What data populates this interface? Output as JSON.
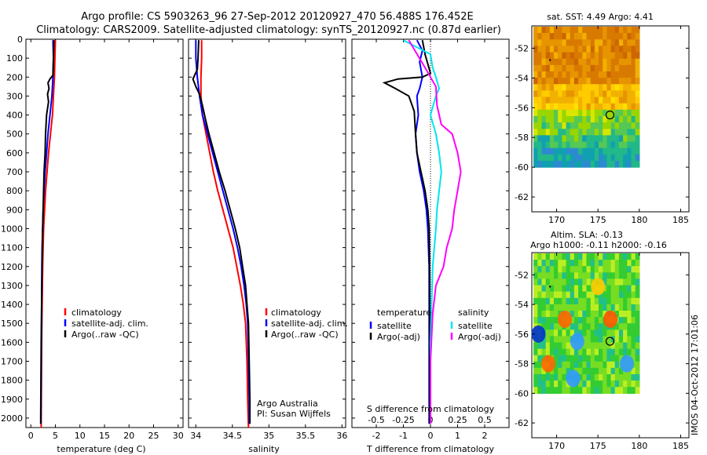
{
  "header": {
    "line1": "Argo profile: CS 5903263_96 27-Sep-2012 20120927_470 56.488S 176.452E",
    "line2": "Climatology: CARS2009. Satellite-adjusted climatology: synTS_20120927.nc (0.87d earlier)"
  },
  "colors": {
    "climatology": "#ff0000",
    "satellite_adj": "#0000ff",
    "argo": "#000000",
    "salinity_satellite": "#00e5ee",
    "salinity_argo": "#ff00ff"
  },
  "chart_data": [
    {
      "type": "line",
      "id": "temperature",
      "xlabel": "temperature (deg C)",
      "ylabel": "",
      "xlim": [
        -1,
        31
      ],
      "ylim": [
        2050,
        0
      ],
      "xticks": [
        "0",
        "5",
        "10",
        "15",
        "20",
        "25",
        "30"
      ],
      "yticks": [
        "0",
        "100",
        "200",
        "300",
        "400",
        "500",
        "600",
        "700",
        "800",
        "900",
        "1000",
        "1100",
        "1200",
        "1300",
        "1400",
        "1500",
        "1600",
        "1700",
        "1800",
        "1900",
        "2000"
      ],
      "legend": [
        "climatology",
        "satellite-adj. clim.",
        "Argo(..raw -QC)"
      ],
      "series": [
        {
          "name": "climatology",
          "color": "#ff0000",
          "points": [
            [
              5.0,
              5
            ],
            [
              4.9,
              100
            ],
            [
              4.8,
              200
            ],
            [
              4.6,
              300
            ],
            [
              4.4,
              400
            ],
            [
              4.0,
              500
            ],
            [
              3.6,
              600
            ],
            [
              3.3,
              700
            ],
            [
              3.0,
              800
            ],
            [
              2.8,
              900
            ],
            [
              2.6,
              1000
            ],
            [
              2.5,
              1100
            ],
            [
              2.4,
              1200
            ],
            [
              2.3,
              1400
            ],
            [
              2.2,
              1600
            ],
            [
              2.15,
              1800
            ],
            [
              2.1,
              2000
            ],
            [
              2.1,
              2050
            ]
          ]
        },
        {
          "name": "satellite-adj. clim.",
          "color": "#0000ff",
          "points": [
            [
              4.5,
              5
            ],
            [
              4.6,
              100
            ],
            [
              4.5,
              200
            ],
            [
              4.3,
              300
            ],
            [
              3.9,
              400
            ],
            [
              3.5,
              500
            ],
            [
              3.2,
              600
            ],
            [
              2.9,
              700
            ],
            [
              2.7,
              800
            ],
            [
              2.5,
              900
            ],
            [
              2.4,
              1000
            ],
            [
              2.3,
              1100
            ],
            [
              2.25,
              1200
            ],
            [
              2.2,
              1400
            ],
            [
              2.1,
              1600
            ],
            [
              2.05,
              1800
            ],
            [
              2.0,
              2000
            ],
            [
              2.0,
              2030
            ]
          ]
        },
        {
          "name": "Argo(..raw -QC)",
          "color": "#000000",
          "points": [
            [
              4.7,
              5
            ],
            [
              4.6,
              100
            ],
            [
              4.5,
              190
            ],
            [
              3.9,
              210
            ],
            [
              3.5,
              230
            ],
            [
              3.7,
              260
            ],
            [
              3.4,
              290
            ],
            [
              3.6,
              330
            ],
            [
              3.2,
              400
            ],
            [
              3.0,
              500
            ],
            [
              2.9,
              600
            ],
            [
              2.7,
              700
            ],
            [
              2.6,
              800
            ],
            [
              2.5,
              900
            ],
            [
              2.4,
              1000
            ],
            [
              2.3,
              1200
            ],
            [
              2.2,
              1400
            ],
            [
              2.15,
              1600
            ],
            [
              2.1,
              1800
            ],
            [
              2.05,
              2000
            ],
            [
              2.05,
              2030
            ]
          ]
        }
      ]
    },
    {
      "type": "line",
      "id": "salinity",
      "xlabel": "salinity",
      "ylabel": "",
      "xlim": [
        33.9,
        36.05
      ],
      "ylim": [
        2050,
        0
      ],
      "xticks": [
        "34",
        "34.5",
        "35",
        "35.5",
        "36"
      ],
      "legend": [
        "climatology",
        "satellite-adj. clim.",
        "Argo(..raw -QC)"
      ],
      "annotation": [
        "Argo Australia",
        "PI: Susan Wijffels"
      ],
      "series": [
        {
          "name": "climatology",
          "color": "#ff0000",
          "points": [
            [
              34.08,
              5
            ],
            [
              34.08,
              100
            ],
            [
              34.07,
              200
            ],
            [
              34.07,
              300
            ],
            [
              34.09,
              400
            ],
            [
              34.14,
              500
            ],
            [
              34.19,
              600
            ],
            [
              34.24,
              700
            ],
            [
              34.3,
              800
            ],
            [
              34.37,
              900
            ],
            [
              34.44,
              1000
            ],
            [
              34.51,
              1100
            ],
            [
              34.56,
              1200
            ],
            [
              34.61,
              1300
            ],
            [
              34.65,
              1400
            ],
            [
              34.68,
              1500
            ],
            [
              34.7,
              1700
            ],
            [
              34.71,
              1900
            ],
            [
              34.72,
              2050
            ]
          ]
        },
        {
          "name": "satellite-adj. clim.",
          "color": "#0000ff",
          "points": [
            [
              34.0,
              5
            ],
            [
              34.0,
              100
            ],
            [
              34.02,
              200
            ],
            [
              34.05,
              300
            ],
            [
              34.09,
              400
            ],
            [
              34.16,
              500
            ],
            [
              34.23,
              600
            ],
            [
              34.3,
              700
            ],
            [
              34.37,
              800
            ],
            [
              34.44,
              900
            ],
            [
              34.51,
              1000
            ],
            [
              34.57,
              1100
            ],
            [
              34.62,
              1200
            ],
            [
              34.66,
              1300
            ],
            [
              34.69,
              1400
            ],
            [
              34.71,
              1500
            ],
            [
              34.72,
              1700
            ],
            [
              34.73,
              1900
            ],
            [
              34.73,
              2030
            ]
          ]
        },
        {
          "name": "Argo(..raw -QC)",
          "color": "#000000",
          "points": [
            [
              34.04,
              5
            ],
            [
              34.03,
              100
            ],
            [
              34.02,
              160
            ],
            [
              33.96,
              210
            ],
            [
              34.0,
              250
            ],
            [
              34.05,
              290
            ],
            [
              34.09,
              350
            ],
            [
              34.13,
              420
            ],
            [
              34.18,
              500
            ],
            [
              34.25,
              600
            ],
            [
              34.32,
              700
            ],
            [
              34.4,
              800
            ],
            [
              34.47,
              900
            ],
            [
              34.54,
              1000
            ],
            [
              34.6,
              1100
            ],
            [
              34.64,
              1200
            ],
            [
              34.68,
              1300
            ],
            [
              34.7,
              1400
            ],
            [
              34.72,
              1500
            ],
            [
              34.73,
              1700
            ],
            [
              34.74,
              1900
            ],
            [
              34.74,
              2030
            ]
          ]
        }
      ]
    },
    {
      "type": "line",
      "id": "difference",
      "xlabel": "T difference from climatology",
      "xlabel_top": "S difference from climatology",
      "xlim": [
        -2.9,
        2.9
      ],
      "ylim": [
        2050,
        0
      ],
      "xticks": [
        "-2",
        "-1",
        "0",
        "1",
        "2"
      ],
      "xticks_s": [
        "-0.5",
        "-0.25",
        "0",
        "0.25",
        "0.5"
      ],
      "legend_t_title": "temperature",
      "legend_s_title": "salinity",
      "legend_t": [
        "satellite",
        "Argo(-adj)"
      ],
      "legend_s": [
        "satellite",
        "Argo(-adj)"
      ],
      "series": [
        {
          "name": "satellite",
          "color": "#0000ff",
          "points": [
            [
              -0.5,
              5
            ],
            [
              -0.3,
              60
            ],
            [
              -0.4,
              120
            ],
            [
              -0.3,
              200
            ],
            [
              -0.4,
              260
            ],
            [
              -0.5,
              300
            ],
            [
              -0.45,
              400
            ],
            [
              -0.55,
              500
            ],
            [
              -0.5,
              600
            ],
            [
              -0.4,
              700
            ],
            [
              -0.25,
              800
            ],
            [
              -0.15,
              900
            ],
            [
              -0.1,
              1000
            ],
            [
              -0.05,
              1200
            ],
            [
              -0.05,
              1600
            ],
            [
              -0.05,
              2030
            ]
          ]
        },
        {
          "name": "Argo(-adj)",
          "color": "#000000",
          "points": [
            [
              -0.3,
              5
            ],
            [
              -0.2,
              80
            ],
            [
              0.0,
              180
            ],
            [
              -0.3,
              200
            ],
            [
              -1.2,
              210
            ],
            [
              -1.7,
              230
            ],
            [
              -1.3,
              260
            ],
            [
              -0.8,
              300
            ],
            [
              -0.6,
              380
            ],
            [
              -0.55,
              500
            ],
            [
              -0.5,
              600
            ],
            [
              -0.35,
              700
            ],
            [
              -0.2,
              800
            ],
            [
              -0.1,
              900
            ],
            [
              -0.05,
              1000
            ],
            [
              -0.03,
              1300
            ],
            [
              -0.03,
              1700
            ],
            [
              -0.03,
              2030
            ]
          ]
        },
        {
          "name": "satellite",
          "color": "#00e5ee",
          "points": [
            [
              -0.25,
              5
            ],
            [
              0.0,
              80
            ],
            [
              0.02,
              150
            ],
            [
              0.05,
              200
            ],
            [
              0.08,
              260
            ],
            [
              0.05,
              300
            ],
            [
              0.0,
              400
            ],
            [
              0.05,
              500
            ],
            [
              0.08,
              600
            ],
            [
              0.1,
              700
            ],
            [
              0.08,
              800
            ],
            [
              0.06,
              900
            ],
            [
              0.05,
              1000
            ],
            [
              0.02,
              1200
            ],
            [
              0.01,
              1400
            ],
            [
              0.0,
              1600
            ],
            [
              0.0,
              2030
            ]
          ]
        },
        {
          "name": "Argo(-adj)",
          "color": "#ff00ff",
          "points": [
            [
              -0.2,
              5
            ],
            [
              -0.05,
              150
            ],
            [
              0.05,
              250
            ],
            [
              0.06,
              350
            ],
            [
              0.1,
              450
            ],
            [
              0.2,
              500
            ],
            [
              0.25,
              600
            ],
            [
              0.28,
              700
            ],
            [
              0.25,
              800
            ],
            [
              0.22,
              900
            ],
            [
              0.2,
              1000
            ],
            [
              0.15,
              1100
            ],
            [
              0.12,
              1200
            ],
            [
              0.05,
              1300
            ],
            [
              0.02,
              1450
            ],
            [
              0.0,
              1700
            ],
            [
              0.0,
              2030
            ]
          ]
        }
      ]
    },
    {
      "type": "heatmap",
      "id": "sst_map",
      "title": "sat. SST: 4.49 Argo: 4.41",
      "xlim": [
        167,
        186
      ],
      "ylim": [
        -63,
        -50.5
      ],
      "xticks": [
        "170",
        "175",
        "180",
        "185"
      ],
      "yticks": [
        "-52",
        "-54",
        "-56",
        "-58",
        "-60",
        "-62"
      ],
      "float_location": [
        176.452,
        -56.488
      ]
    },
    {
      "type": "heatmap",
      "id": "sla_map",
      "title_line1": "Altim. SLA: -0.13",
      "title_line2": "Argo h1000: -0.11 h2000: -0.16",
      "xlim": [
        167,
        186
      ],
      "ylim": [
        -63,
        -50.5
      ],
      "xticks": [
        "170",
        "175",
        "180",
        "185"
      ],
      "yticks": [
        "-52",
        "-54",
        "-56",
        "-58",
        "-60",
        "-62"
      ],
      "float_location": [
        176.452,
        -56.488
      ]
    }
  ],
  "footer": {
    "stamp": "IMOS 04-Oct-2012 17:01:06"
  }
}
